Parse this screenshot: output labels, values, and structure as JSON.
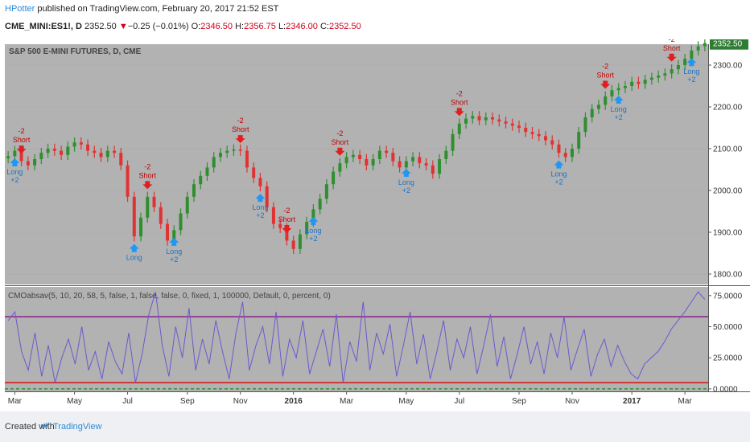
{
  "header": {
    "author": "HPotter",
    "published": "published on TradingView.com, February 20, 2017 21:52 EST",
    "symbol": "CME_MINI:ES1!",
    "interval": ", D",
    "last": "2352.50",
    "change": "−0.25 (−0.01%)",
    "o_label": "O:",
    "o": "2346.50",
    "h_label": "H:",
    "h": "2356.75",
    "l_label": "L:",
    "l": "2346.00",
    "c_label": "C:",
    "c": "2352.50"
  },
  "footer": {
    "created": "Created with",
    "brand": "TradingView"
  },
  "colors": {
    "pane_bg": "#b2b2b2",
    "up": "#2f8f2f",
    "down": "#e03232",
    "cmo_line": "#6a5acd",
    "upper_level": "#800080",
    "lower_level": "#e00000",
    "zero_level": "#1a8a1a",
    "long_signal": "#2196f3",
    "short_signal": "#e02020",
    "price_tag": "#2e7d32"
  },
  "chart_data": [
    {
      "type": "line",
      "title": "S&P 500 E-MINI FUTURES, D, CME",
      "series": [
        {
          "name": "",
          "values": [
            2082,
            2095,
            2070,
            2060,
            2075,
            2090,
            2100,
            2095,
            2085,
            2105,
            2115,
            2110,
            2095,
            2090,
            2080,
            2095,
            2090,
            2060,
            1985,
            1890,
            1935,
            1985,
            1960,
            1920,
            1880,
            1905,
            1945,
            1985,
            2015,
            2035,
            2055,
            2080,
            2090,
            2095,
            2098,
            2095,
            2055,
            2030,
            2010,
            1960,
            1920,
            1910,
            1880,
            1860,
            1895,
            1925,
            1955,
            1980,
            2015,
            2045,
            2065,
            2080,
            2085,
            2075,
            2060,
            2075,
            2095,
            2090,
            2070,
            2055,
            2070,
            2080,
            2065,
            2060,
            2040,
            2075,
            2095,
            2135,
            2160,
            2172,
            2178,
            2168,
            2175,
            2170,
            2165,
            2160,
            2155,
            2150,
            2140,
            2135,
            2130,
            2120,
            2110,
            2090,
            2080,
            2100,
            2140,
            2175,
            2195,
            2205,
            2225,
            2240,
            2245,
            2250,
            2260,
            2255,
            2265,
            2270,
            2275,
            2280,
            2290,
            2300,
            2315,
            2335,
            2345,
            2352.5
          ]
        }
      ],
      "ylim": [
        1775,
        2350
      ],
      "y_ticks": [
        "1800.00",
        "1900.00",
        "2000.00",
        "2100.00",
        "2200.00",
        "2300.00"
      ],
      "last_value_label": "2352.50",
      "signals": [
        {
          "idx": 2,
          "kind": "short",
          "text": "Short",
          "qty": "-2"
        },
        {
          "idx": 1,
          "kind": "long",
          "text": "Long",
          "qty": "+2"
        },
        {
          "idx": 21,
          "kind": "short",
          "text": "Short",
          "qty": "-2"
        },
        {
          "idx": 19,
          "kind": "long",
          "text": "Long",
          "qty": ""
        },
        {
          "idx": 25,
          "kind": "long",
          "text": "Long",
          "qty": "+2"
        },
        {
          "idx": 35,
          "kind": "short",
          "text": "Short",
          "qty": "-2"
        },
        {
          "idx": 38,
          "kind": "long",
          "text": "Long",
          "qty": "+2"
        },
        {
          "idx": 42,
          "kind": "short",
          "text": "Short",
          "qty": "-2"
        },
        {
          "idx": 46,
          "kind": "long",
          "text": "Long",
          "qty": "+2"
        },
        {
          "idx": 50,
          "kind": "short",
          "text": "Short",
          "qty": "-2"
        },
        {
          "idx": 60,
          "kind": "long",
          "text": "Long",
          "qty": "+2"
        },
        {
          "idx": 68,
          "kind": "short",
          "text": "Short",
          "qty": "-2"
        },
        {
          "idx": 83,
          "kind": "long",
          "text": "Long",
          "qty": "+2"
        },
        {
          "idx": 90,
          "kind": "short",
          "text": "Short",
          "qty": "-2"
        },
        {
          "idx": 92,
          "kind": "long",
          "text": "Long",
          "qty": "+2"
        },
        {
          "idx": 100,
          "kind": "short",
          "text": "Short",
          "qty": "-2"
        },
        {
          "idx": 103,
          "kind": "long",
          "text": "Long",
          "qty": "+2"
        }
      ],
      "x_ticks": [
        {
          "label": "Mar",
          "idx": 1,
          "bold": false
        },
        {
          "label": "May",
          "idx": 10,
          "bold": false
        },
        {
          "label": "Jul",
          "idx": 18,
          "bold": false
        },
        {
          "label": "Sep",
          "idx": 27,
          "bold": false
        },
        {
          "label": "Nov",
          "idx": 35,
          "bold": false
        },
        {
          "label": "2016",
          "idx": 43,
          "bold": true
        },
        {
          "label": "Mar",
          "idx": 51,
          "bold": false
        },
        {
          "label": "May",
          "idx": 60,
          "bold": false
        },
        {
          "label": "Jul",
          "idx": 68,
          "bold": false
        },
        {
          "label": "Sep",
          "idx": 77,
          "bold": false
        },
        {
          "label": "Nov",
          "idx": 85,
          "bold": false
        },
        {
          "label": "2017",
          "idx": 94,
          "bold": true
        },
        {
          "label": "Mar",
          "idx": 102,
          "bold": false
        }
      ]
    },
    {
      "type": "line",
      "title": "CMOabsav(5, 10, 20, 58, 5, false, 1, false, false, 0, fixed, 1, 100000, Default, 0, percent, 0)",
      "series": [
        {
          "name": "",
          "values": [
            55,
            62,
            30,
            15,
            45,
            10,
            35,
            5,
            25,
            40,
            20,
            50,
            15,
            30,
            8,
            38,
            22,
            12,
            45,
            5,
            28,
            60,
            78,
            35,
            10,
            50,
            25,
            65,
            15,
            40,
            20,
            55,
            30,
            8,
            45,
            70,
            15,
            35,
            50,
            20,
            62,
            10,
            40,
            25,
            55,
            12,
            30,
            48,
            18,
            60,
            5,
            38,
            22,
            70,
            15,
            45,
            28,
            52,
            10,
            35,
            62,
            20,
            44,
            8,
            30,
            55,
            15,
            40,
            25,
            50,
            12,
            35,
            60,
            18,
            42,
            8,
            28,
            50,
            20,
            38,
            12,
            45,
            25,
            58,
            15,
            32,
            48,
            10,
            28,
            40,
            18,
            35,
            22,
            12,
            8,
            20,
            25,
            30,
            38,
            48,
            55,
            62,
            70,
            78,
            72
          ]
        }
      ],
      "ylim": [
        -2,
        82
      ],
      "levels": [
        58,
        5,
        0
      ],
      "y_ticks": [
        "0.0000",
        "25.0000",
        "50.0000",
        "75.0000"
      ]
    }
  ]
}
